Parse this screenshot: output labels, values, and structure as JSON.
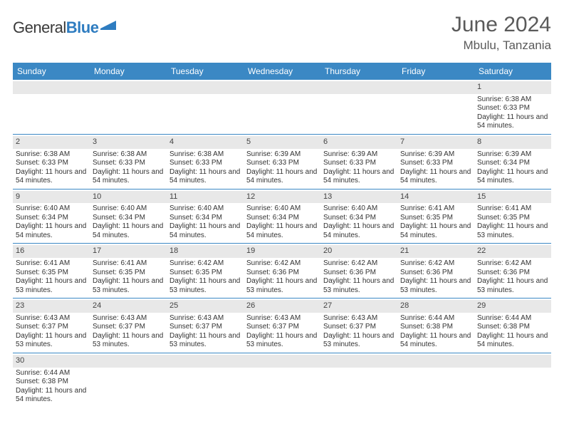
{
  "logo": {
    "text_gray": "General",
    "text_blue": "Blue"
  },
  "title": "June 2024",
  "location": "Mbulu, Tanzania",
  "colors": {
    "header_blue": "#3b88c4",
    "row_border": "#3b88c4",
    "daynum_bg": "#e8e8e8",
    "empty_bg": "#f0f0f0",
    "text_dark": "#333333",
    "title_gray": "#5a5a5a"
  },
  "weekdays": [
    "Sunday",
    "Monday",
    "Tuesday",
    "Wednesday",
    "Thursday",
    "Friday",
    "Saturday"
  ],
  "weeks": [
    [
      {
        "day": "",
        "empty": true
      },
      {
        "day": "",
        "empty": true
      },
      {
        "day": "",
        "empty": true
      },
      {
        "day": "",
        "empty": true
      },
      {
        "day": "",
        "empty": true
      },
      {
        "day": "",
        "empty": true
      },
      {
        "day": "1",
        "sunrise": "Sunrise: 6:38 AM",
        "sunset": "Sunset: 6:33 PM",
        "daylight": "Daylight: 11 hours and 54 minutes."
      }
    ],
    [
      {
        "day": "2",
        "sunrise": "Sunrise: 6:38 AM",
        "sunset": "Sunset: 6:33 PM",
        "daylight": "Daylight: 11 hours and 54 minutes."
      },
      {
        "day": "3",
        "sunrise": "Sunrise: 6:38 AM",
        "sunset": "Sunset: 6:33 PM",
        "daylight": "Daylight: 11 hours and 54 minutes."
      },
      {
        "day": "4",
        "sunrise": "Sunrise: 6:38 AM",
        "sunset": "Sunset: 6:33 PM",
        "daylight": "Daylight: 11 hours and 54 minutes."
      },
      {
        "day": "5",
        "sunrise": "Sunrise: 6:39 AM",
        "sunset": "Sunset: 6:33 PM",
        "daylight": "Daylight: 11 hours and 54 minutes."
      },
      {
        "day": "6",
        "sunrise": "Sunrise: 6:39 AM",
        "sunset": "Sunset: 6:33 PM",
        "daylight": "Daylight: 11 hours and 54 minutes."
      },
      {
        "day": "7",
        "sunrise": "Sunrise: 6:39 AM",
        "sunset": "Sunset: 6:33 PM",
        "daylight": "Daylight: 11 hours and 54 minutes."
      },
      {
        "day": "8",
        "sunrise": "Sunrise: 6:39 AM",
        "sunset": "Sunset: 6:34 PM",
        "daylight": "Daylight: 11 hours and 54 minutes."
      }
    ],
    [
      {
        "day": "9",
        "sunrise": "Sunrise: 6:40 AM",
        "sunset": "Sunset: 6:34 PM",
        "daylight": "Daylight: 11 hours and 54 minutes."
      },
      {
        "day": "10",
        "sunrise": "Sunrise: 6:40 AM",
        "sunset": "Sunset: 6:34 PM",
        "daylight": "Daylight: 11 hours and 54 minutes."
      },
      {
        "day": "11",
        "sunrise": "Sunrise: 6:40 AM",
        "sunset": "Sunset: 6:34 PM",
        "daylight": "Daylight: 11 hours and 54 minutes."
      },
      {
        "day": "12",
        "sunrise": "Sunrise: 6:40 AM",
        "sunset": "Sunset: 6:34 PM",
        "daylight": "Daylight: 11 hours and 54 minutes."
      },
      {
        "day": "13",
        "sunrise": "Sunrise: 6:40 AM",
        "sunset": "Sunset: 6:34 PM",
        "daylight": "Daylight: 11 hours and 54 minutes."
      },
      {
        "day": "14",
        "sunrise": "Sunrise: 6:41 AM",
        "sunset": "Sunset: 6:35 PM",
        "daylight": "Daylight: 11 hours and 54 minutes."
      },
      {
        "day": "15",
        "sunrise": "Sunrise: 6:41 AM",
        "sunset": "Sunset: 6:35 PM",
        "daylight": "Daylight: 11 hours and 53 minutes."
      }
    ],
    [
      {
        "day": "16",
        "sunrise": "Sunrise: 6:41 AM",
        "sunset": "Sunset: 6:35 PM",
        "daylight": "Daylight: 11 hours and 53 minutes."
      },
      {
        "day": "17",
        "sunrise": "Sunrise: 6:41 AM",
        "sunset": "Sunset: 6:35 PM",
        "daylight": "Daylight: 11 hours and 53 minutes."
      },
      {
        "day": "18",
        "sunrise": "Sunrise: 6:42 AM",
        "sunset": "Sunset: 6:35 PM",
        "daylight": "Daylight: 11 hours and 53 minutes."
      },
      {
        "day": "19",
        "sunrise": "Sunrise: 6:42 AM",
        "sunset": "Sunset: 6:36 PM",
        "daylight": "Daylight: 11 hours and 53 minutes."
      },
      {
        "day": "20",
        "sunrise": "Sunrise: 6:42 AM",
        "sunset": "Sunset: 6:36 PM",
        "daylight": "Daylight: 11 hours and 53 minutes."
      },
      {
        "day": "21",
        "sunrise": "Sunrise: 6:42 AM",
        "sunset": "Sunset: 6:36 PM",
        "daylight": "Daylight: 11 hours and 53 minutes."
      },
      {
        "day": "22",
        "sunrise": "Sunrise: 6:42 AM",
        "sunset": "Sunset: 6:36 PM",
        "daylight": "Daylight: 11 hours and 53 minutes."
      }
    ],
    [
      {
        "day": "23",
        "sunrise": "Sunrise: 6:43 AM",
        "sunset": "Sunset: 6:37 PM",
        "daylight": "Daylight: 11 hours and 53 minutes."
      },
      {
        "day": "24",
        "sunrise": "Sunrise: 6:43 AM",
        "sunset": "Sunset: 6:37 PM",
        "daylight": "Daylight: 11 hours and 53 minutes."
      },
      {
        "day": "25",
        "sunrise": "Sunrise: 6:43 AM",
        "sunset": "Sunset: 6:37 PM",
        "daylight": "Daylight: 11 hours and 53 minutes."
      },
      {
        "day": "26",
        "sunrise": "Sunrise: 6:43 AM",
        "sunset": "Sunset: 6:37 PM",
        "daylight": "Daylight: 11 hours and 53 minutes."
      },
      {
        "day": "27",
        "sunrise": "Sunrise: 6:43 AM",
        "sunset": "Sunset: 6:37 PM",
        "daylight": "Daylight: 11 hours and 53 minutes."
      },
      {
        "day": "28",
        "sunrise": "Sunrise: 6:44 AM",
        "sunset": "Sunset: 6:38 PM",
        "daylight": "Daylight: 11 hours and 54 minutes."
      },
      {
        "day": "29",
        "sunrise": "Sunrise: 6:44 AM",
        "sunset": "Sunset: 6:38 PM",
        "daylight": "Daylight: 11 hours and 54 minutes."
      }
    ],
    [
      {
        "day": "30",
        "sunrise": "Sunrise: 6:44 AM",
        "sunset": "Sunset: 6:38 PM",
        "daylight": "Daylight: 11 hours and 54 minutes."
      },
      {
        "day": "",
        "empty": true
      },
      {
        "day": "",
        "empty": true
      },
      {
        "day": "",
        "empty": true
      },
      {
        "day": "",
        "empty": true
      },
      {
        "day": "",
        "empty": true
      },
      {
        "day": "",
        "empty": true
      }
    ]
  ]
}
